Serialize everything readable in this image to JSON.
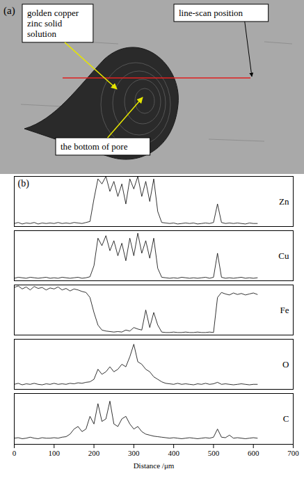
{
  "image_panel": {
    "label": "(a)",
    "annotations": [
      "golden copper zinc solid solution",
      "line-scan position",
      "the bottom of pore"
    ]
  },
  "chart_data": {
    "type": "line",
    "title": "(b)",
    "xlabel": "Distance /μm",
    "x": [
      0,
      10,
      20,
      30,
      40,
      50,
      60,
      70,
      80,
      90,
      100,
      110,
      120,
      130,
      140,
      150,
      160,
      170,
      180,
      190,
      200,
      210,
      220,
      230,
      240,
      250,
      260,
      270,
      280,
      290,
      300,
      310,
      320,
      330,
      340,
      350,
      360,
      370,
      380,
      390,
      400,
      410,
      420,
      430,
      440,
      450,
      460,
      470,
      480,
      490,
      500,
      510,
      520,
      530,
      540,
      550,
      560,
      570,
      580,
      590,
      600,
      610
    ],
    "xlim": [
      0,
      700
    ],
    "xticks": [
      0,
      100,
      200,
      300,
      400,
      500,
      600,
      700
    ],
    "ylim": [
      0,
      1
    ],
    "tick_labels": "x",
    "series": [
      {
        "name": "Zn",
        "color": "#000000",
        "values": [
          0.06,
          0.08,
          0.05,
          0.07,
          0.06,
          0.08,
          0.05,
          0.07,
          0.06,
          0.07,
          0.06,
          0.08,
          0.06,
          0.07,
          0.06,
          0.08,
          0.07,
          0.06,
          0.08,
          0.1,
          0.55,
          0.95,
          0.85,
          1.0,
          0.7,
          0.9,
          0.6,
          0.85,
          0.45,
          0.95,
          0.75,
          1.0,
          0.6,
          0.9,
          0.5,
          0.95,
          0.3,
          0.08,
          0.07,
          0.06,
          0.07,
          0.05,
          0.06,
          0.07,
          0.06,
          0.07,
          0.05,
          0.06,
          0.07,
          0.06,
          0.08,
          0.45,
          0.08,
          0.06,
          0.07,
          0.06,
          0.07,
          0.06,
          0.05,
          0.07,
          0.06,
          0.06
        ]
      },
      {
        "name": "Cu",
        "color": "#000000",
        "values": [
          0.05,
          0.07,
          0.06,
          0.05,
          0.07,
          0.06,
          0.05,
          0.06,
          0.07,
          0.05,
          0.06,
          0.05,
          0.07,
          0.06,
          0.05,
          0.06,
          0.07,
          0.05,
          0.06,
          0.08,
          0.3,
          0.85,
          0.7,
          0.9,
          0.6,
          0.8,
          0.5,
          0.75,
          0.4,
          0.85,
          0.5,
          0.95,
          0.55,
          0.8,
          0.45,
          0.85,
          0.25,
          0.07,
          0.06,
          0.05,
          0.06,
          0.05,
          0.07,
          0.06,
          0.05,
          0.06,
          0.05,
          0.06,
          0.07,
          0.05,
          0.07,
          0.55,
          0.07,
          0.05,
          0.06,
          0.05,
          0.06,
          0.07,
          0.05,
          0.06,
          0.05,
          0.06
        ]
      },
      {
        "name": "Fe",
        "color": "#000000",
        "values": [
          0.95,
          0.98,
          0.92,
          0.96,
          0.9,
          0.97,
          0.93,
          0.95,
          0.9,
          0.94,
          0.92,
          0.96,
          0.9,
          0.93,
          0.88,
          0.92,
          0.9,
          0.87,
          0.85,
          0.75,
          0.45,
          0.2,
          0.1,
          0.08,
          0.07,
          0.06,
          0.07,
          0.06,
          0.1,
          0.08,
          0.15,
          0.12,
          0.1,
          0.5,
          0.15,
          0.45,
          0.2,
          0.06,
          0.05,
          0.05,
          0.06,
          0.05,
          0.05,
          0.06,
          0.05,
          0.05,
          0.06,
          0.05,
          0.05,
          0.06,
          0.05,
          0.75,
          0.85,
          0.82,
          0.8,
          0.84,
          0.81,
          0.83,
          0.8,
          0.82,
          0.84,
          0.81
        ]
      },
      {
        "name": "O",
        "color": "#000000",
        "values": [
          0.1,
          0.12,
          0.09,
          0.11,
          0.1,
          0.12,
          0.1,
          0.09,
          0.11,
          0.1,
          0.12,
          0.1,
          0.11,
          0.1,
          0.12,
          0.11,
          0.13,
          0.12,
          0.14,
          0.15,
          0.2,
          0.4,
          0.3,
          0.35,
          0.45,
          0.35,
          0.4,
          0.5,
          0.45,
          0.65,
          0.9,
          0.55,
          0.5,
          0.4,
          0.35,
          0.25,
          0.2,
          0.15,
          0.12,
          0.11,
          0.1,
          0.12,
          0.1,
          0.11,
          0.1,
          0.09,
          0.11,
          0.1,
          0.12,
          0.1,
          0.11,
          0.14,
          0.1,
          0.11,
          0.1,
          0.09,
          0.1,
          0.11,
          0.1,
          0.09,
          0.1,
          0.1
        ]
      },
      {
        "name": "C",
        "color": "#000000",
        "values": [
          0.12,
          0.13,
          0.11,
          0.12,
          0.14,
          0.12,
          0.11,
          0.13,
          0.12,
          0.12,
          0.13,
          0.12,
          0.14,
          0.15,
          0.2,
          0.3,
          0.35,
          0.25,
          0.3,
          0.55,
          0.4,
          0.8,
          0.45,
          0.5,
          0.85,
          0.4,
          0.35,
          0.5,
          0.55,
          0.4,
          0.3,
          0.35,
          0.25,
          0.2,
          0.18,
          0.16,
          0.15,
          0.14,
          0.13,
          0.12,
          0.13,
          0.12,
          0.11,
          0.12,
          0.13,
          0.12,
          0.11,
          0.12,
          0.13,
          0.12,
          0.14,
          0.3,
          0.14,
          0.13,
          0.18,
          0.12,
          0.13,
          0.12,
          0.11,
          0.12,
          0.13,
          0.12
        ]
      }
    ]
  }
}
